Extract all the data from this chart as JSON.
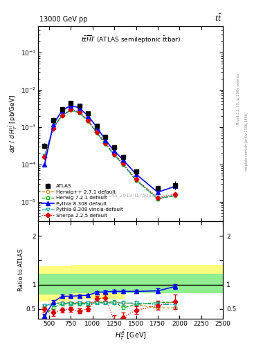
{
  "title_top_left": "13000 GeV pp",
  "title_top_right": "tt",
  "plot_title": "tt$\\overline{H}$T (ATLAS semileptonic tbar)",
  "watermark": "ATLAS_2019_I1750330",
  "xlim": [
    375,
    2500
  ],
  "ylim_log": [
    3e-06,
    0.5
  ],
  "ylim_ratio": [
    0.3,
    2.3
  ],
  "atlas_x": [
    450,
    550,
    650,
    750,
    850,
    950,
    1050,
    1150,
    1250,
    1350,
    1500,
    1750,
    1950
  ],
  "atlas_y": [
    0.00032,
    0.00155,
    0.003,
    0.0045,
    0.0038,
    0.0023,
    0.0011,
    0.00055,
    0.00029,
    0.00016,
    6.5e-05,
    2.3e-05,
    2.8e-05
  ],
  "atlas_yerr_lo": [
    5e-05,
    0.00025,
    0.0004,
    0.0005,
    0.0004,
    0.00025,
    0.00012,
    6e-05,
    3.5e-05,
    2e-05,
    8e-06,
    4e-06,
    7e-06
  ],
  "atlas_yerr_hi": [
    5e-05,
    0.00025,
    0.0004,
    0.0005,
    0.0004,
    0.00025,
    0.00012,
    6e-05,
    3.5e-05,
    2e-05,
    8e-06,
    4e-06,
    7e-06
  ],
  "herwig271_x": [
    450,
    550,
    650,
    750,
    850,
    950,
    1050,
    1150,
    1250,
    1350,
    1500,
    1750,
    1950
  ],
  "herwig271_y": [
    0.00017,
    0.001,
    0.00205,
    0.00285,
    0.00245,
    0.00145,
    0.0007,
    0.000355,
    0.00018,
    0.0001,
    3.8e-05,
    1.2e-05,
    1.45e-05
  ],
  "herwig271_color": "#cc7700",
  "herwig271_ratio": [
    0.54,
    0.63,
    0.62,
    0.63,
    0.63,
    0.63,
    0.64,
    0.64,
    0.63,
    0.63,
    0.59,
    0.52,
    0.52
  ],
  "herwig721_x": [
    450,
    550,
    650,
    750,
    850,
    950,
    1050,
    1150,
    1250,
    1350,
    1500,
    1750,
    1950
  ],
  "herwig721_y": [
    0.00017,
    0.001,
    0.00205,
    0.00285,
    0.00245,
    0.00145,
    0.0007,
    0.000355,
    0.00018,
    0.0001,
    3.8e-05,
    1.2e-05,
    1.5e-05
  ],
  "herwig721_color": "#00aa00",
  "herwig721_ratio": [
    0.36,
    0.53,
    0.6,
    0.6,
    0.6,
    0.6,
    0.63,
    0.62,
    0.65,
    0.52,
    0.59,
    0.63,
    0.64
  ],
  "pythia8_x": [
    450,
    550,
    650,
    750,
    850,
    950,
    1050,
    1150,
    1250,
    1350,
    1500,
    1750,
    1950
  ],
  "pythia8_y": [
    0.0001,
    0.0012,
    0.0028,
    0.0038,
    0.0033,
    0.002,
    0.001,
    0.00045,
    0.00023,
    0.000135,
    5.5e-05,
    1.8e-05,
    2.6e-05
  ],
  "pythia8_color": "#0000ff",
  "pythia8_ratio": [
    0.36,
    0.64,
    0.76,
    0.76,
    0.77,
    0.78,
    0.84,
    0.85,
    0.86,
    0.86,
    0.86,
    0.87,
    0.96
  ],
  "pythia8_ratio_err": [
    0.04,
    0.04,
    0.04,
    0.03,
    0.03,
    0.03,
    0.03,
    0.03,
    0.03,
    0.04,
    0.04,
    0.05,
    0.05
  ],
  "pythia8v_x": [
    450,
    550,
    650,
    750,
    850,
    950,
    1050,
    1150,
    1250,
    1350,
    1500,
    1750,
    1950
  ],
  "pythia8v_y": [
    0.00017,
    0.001,
    0.00205,
    0.00285,
    0.00245,
    0.00145,
    0.0007,
    0.000355,
    0.00018,
    0.0001,
    3.8e-05,
    1.2e-05,
    1.45e-05
  ],
  "pythia8v_color": "#00aaaa",
  "pythia8v_ratio": [
    0.57,
    0.6,
    0.615,
    0.615,
    0.618,
    0.618,
    0.62,
    0.622,
    0.62,
    0.62,
    0.62,
    0.59,
    0.59
  ],
  "pythia8v_ratio_err": [
    0.03,
    0.03,
    0.03,
    0.03,
    0.03,
    0.03,
    0.03,
    0.03,
    0.03,
    0.04,
    0.04,
    0.05,
    0.06
  ],
  "sherpa_x": [
    450,
    550,
    650,
    750,
    850,
    950,
    1050,
    1150,
    1250,
    1350,
    1500,
    1750,
    1950
  ],
  "sherpa_y": [
    0.00016,
    0.0009,
    0.0021,
    0.003,
    0.0026,
    0.0015,
    0.00075,
    0.00038,
    0.00019,
    0.00011,
    4e-05,
    1.3e-05,
    1.6e-05
  ],
  "sherpa_color": "#dd0000",
  "sherpa_ratio": [
    0.5,
    0.42,
    0.48,
    0.49,
    0.46,
    0.5,
    0.71,
    0.73,
    0.25,
    0.33,
    0.47,
    0.57,
    0.65
  ],
  "sherpa_ratio_err": [
    0.06,
    0.06,
    0.05,
    0.05,
    0.05,
    0.05,
    0.05,
    0.07,
    0.12,
    0.1,
    0.08,
    0.09,
    0.15
  ],
  "band_x": [
    375,
    500,
    625,
    750,
    875,
    1000,
    1125,
    1250,
    1375,
    1500,
    1750,
    2000,
    2500
  ],
  "green_lo": [
    0.8,
    0.8,
    0.8,
    0.82,
    0.82,
    0.82,
    0.82,
    0.82,
    0.82,
    0.82,
    0.82,
    0.82,
    0.82
  ],
  "green_hi": [
    1.22,
    1.22,
    1.22,
    1.22,
    1.22,
    1.22,
    1.22,
    1.22,
    1.22,
    1.22,
    1.22,
    1.22,
    1.22
  ],
  "yellow_lo": [
    0.65,
    0.65,
    0.65,
    0.7,
    0.7,
    0.7,
    0.7,
    0.7,
    1.22,
    1.22,
    1.22,
    1.22,
    1.22
  ],
  "yellow_hi": [
    1.38,
    1.38,
    1.38,
    1.4,
    1.4,
    1.4,
    1.4,
    1.4,
    1.4,
    1.4,
    1.4,
    1.4,
    1.4
  ]
}
